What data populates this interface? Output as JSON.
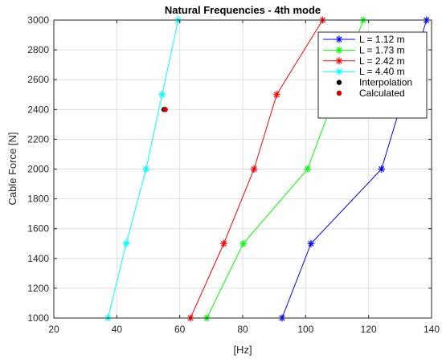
{
  "chart_data": {
    "type": "line",
    "title": "Natural Frequencies - 4th mode",
    "xlabel": "[Hz]",
    "ylabel": "Cable Force [N]",
    "xlim": [
      20,
      140
    ],
    "ylim": [
      1000,
      3000
    ],
    "xticks": [
      "20",
      "40",
      "60",
      "80",
      "100",
      "120",
      "140"
    ],
    "yticks": [
      "1000",
      "1200",
      "1400",
      "1600",
      "1800",
      "2000",
      "2200",
      "2400",
      "2600",
      "2800",
      "3000"
    ],
    "grid": true,
    "legend_position": "top-right",
    "series": [
      {
        "name": "L = 1.12 m",
        "color": "#0000ff",
        "marker": "asterisk",
        "x": [
          92.5,
          101.7,
          124.1,
          138.4
        ],
        "y": [
          1000,
          1500,
          2000,
          3000
        ]
      },
      {
        "name": "L = 1.73 m",
        "color": "#00ff00",
        "marker": "asterisk",
        "x": [
          68.6,
          80.2,
          100.6,
          118.3
        ],
        "y": [
          1000,
          1500,
          2000,
          3000
        ]
      },
      {
        "name": "L = 2.42 m",
        "color": "#ff0000",
        "marker": "asterisk",
        "x": [
          63.4,
          74.0,
          83.6,
          90.8,
          105.4
        ],
        "y": [
          1000,
          1500,
          2000,
          2500,
          3000
        ]
      },
      {
        "name": "L = 4.40 m",
        "color": "#00ffff",
        "marker": "asterisk",
        "x": [
          37.2,
          43.0,
          49.3,
          54.4,
          59.5
        ],
        "y": [
          1000,
          1500,
          2000,
          2500,
          3000
        ]
      }
    ],
    "points": [
      {
        "name": "Interpolation",
        "color": "#000000",
        "x": 55.0,
        "y": 2400
      },
      {
        "name": "Calculated",
        "color": "#cc0000",
        "x": 55.4,
        "y": 2400
      }
    ]
  }
}
